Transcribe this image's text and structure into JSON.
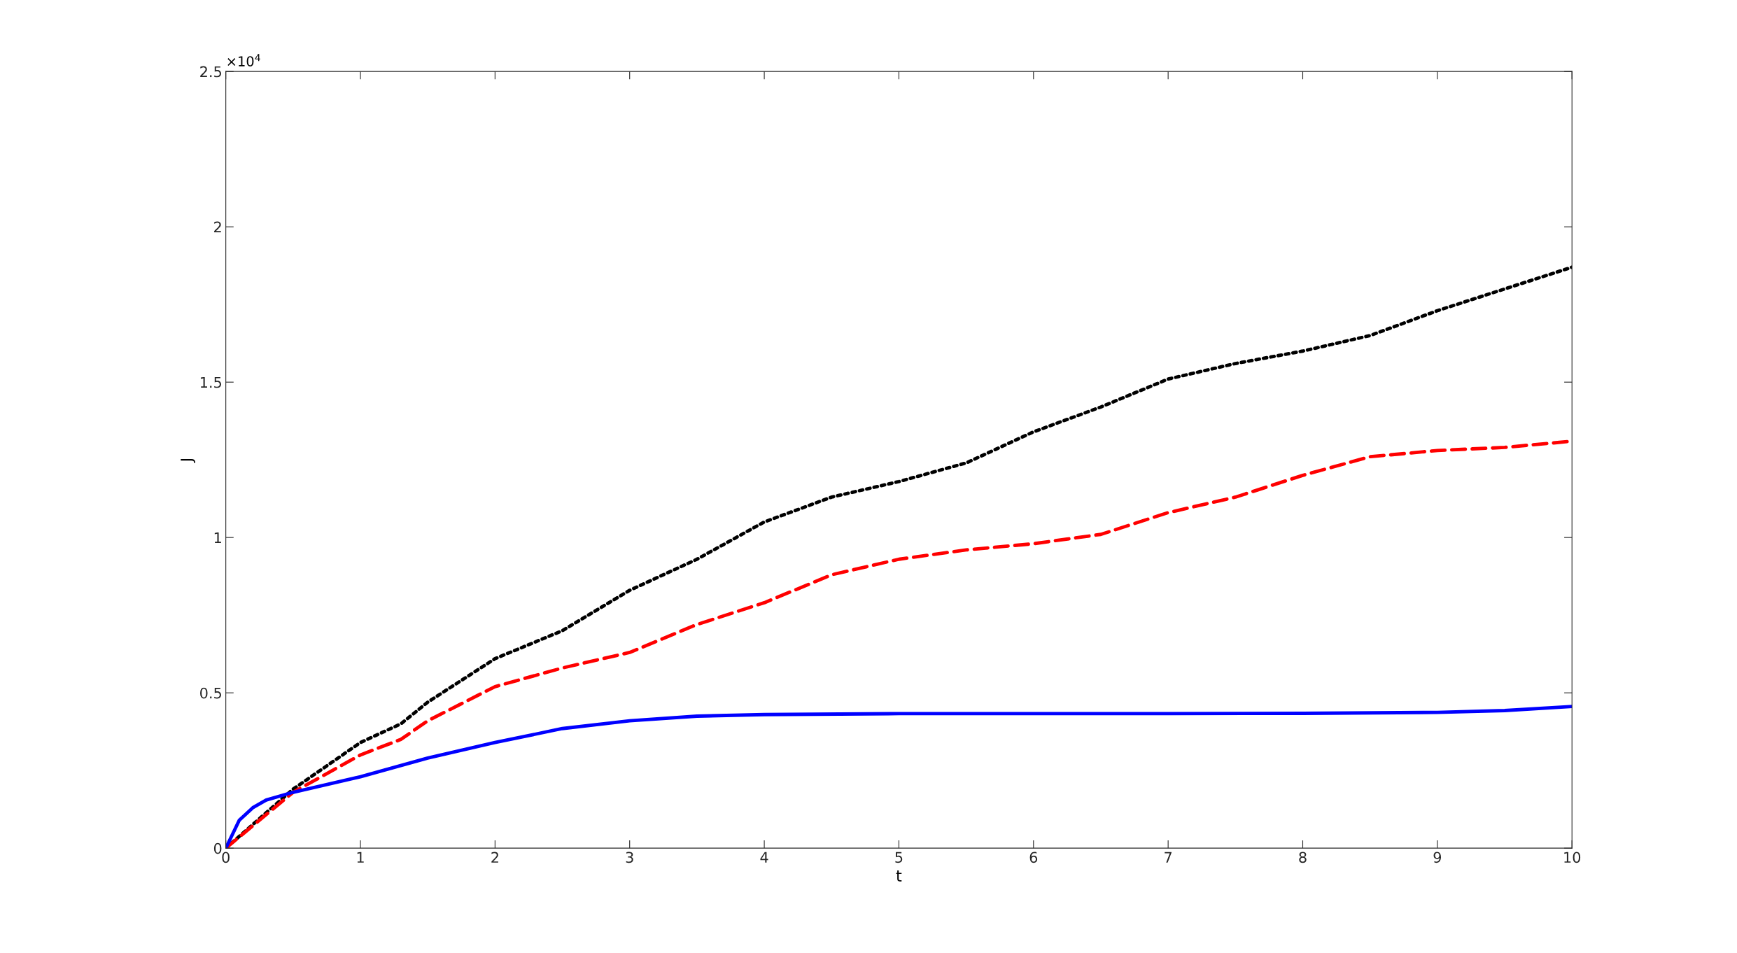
{
  "chart_data": {
    "type": "line",
    "xlabel": "t",
    "ylabel": "J",
    "annotations": [
      "×10$^{4}$"
    ],
    "xlim": [
      0,
      10
    ],
    "xticks": [
      0,
      1,
      2,
      3,
      4,
      5,
      6,
      7,
      8,
      9,
      10
    ],
    "ylim": [
      0,
      2.5
    ],
    "yticks": [
      0,
      0.5,
      1,
      1.5,
      2,
      2.5
    ],
    "grid": false,
    "legend": false,
    "series": [
      {
        "color": "#000000",
        "line_style": "dotted",
        "x": [
          0,
          0.5,
          1,
          1.3,
          1.5,
          2,
          2.5,
          3,
          3.5,
          4,
          4.5,
          5,
          5.5,
          6,
          6.5,
          7,
          7.5,
          8,
          8.5,
          9,
          9.5,
          10
        ],
        "values": [
          0,
          0.19,
          0.34,
          0.4,
          0.47,
          0.61,
          0.7,
          0.83,
          0.93,
          1.05,
          1.13,
          1.18,
          1.24,
          1.34,
          1.42,
          1.51,
          1.56,
          1.6,
          1.65,
          1.73,
          1.8,
          1.87
        ]
      },
      {
        "color": "#ff0000",
        "line_style": "dashed",
        "x": [
          0,
          0.5,
          1,
          1.3,
          1.5,
          2,
          2.5,
          3,
          3.5,
          4,
          4.5,
          5,
          5.5,
          6,
          6.5,
          7,
          7.5,
          8,
          8.5,
          9,
          9.5,
          10
        ],
        "values": [
          0,
          0.18,
          0.3,
          0.35,
          0.41,
          0.52,
          0.58,
          0.63,
          0.72,
          0.79,
          0.88,
          0.93,
          0.96,
          0.98,
          1.01,
          1.08,
          1.13,
          1.2,
          1.26,
          1.28,
          1.29,
          1.31
        ]
      },
      {
        "color": "#0000ff",
        "line_style": "solid",
        "x": [
          0,
          0.1,
          0.2,
          0.3,
          0.5,
          1,
          1.5,
          2,
          2.5,
          3,
          3.5,
          4,
          5,
          6,
          7,
          8,
          9,
          9.5,
          10
        ],
        "values": [
          0,
          0.09,
          0.13,
          0.155,
          0.18,
          0.23,
          0.29,
          0.34,
          0.385,
          0.41,
          0.425,
          0.43,
          0.433,
          0.433,
          0.433,
          0.434,
          0.437,
          0.443,
          0.456
        ]
      }
    ]
  }
}
